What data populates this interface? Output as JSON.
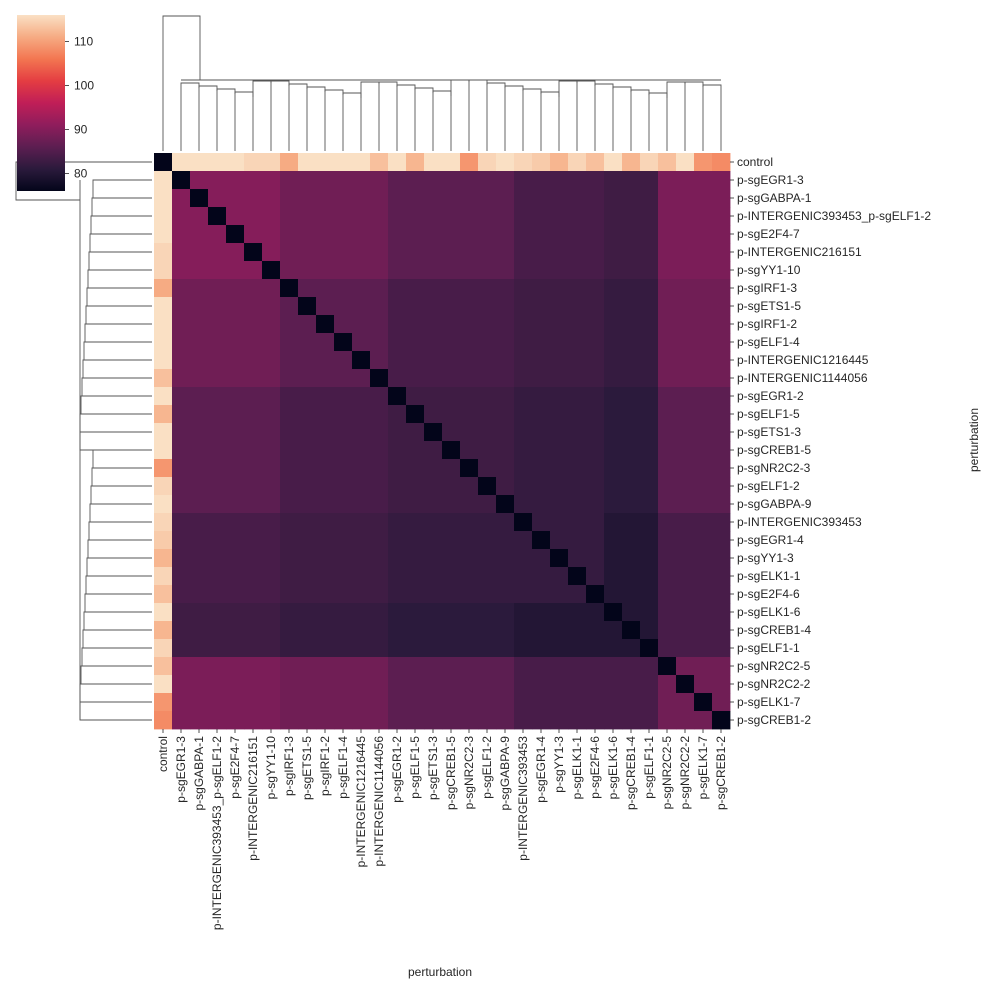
{
  "chart_data": {
    "type": "heatmap",
    "title": "",
    "xlabel": "perturbation",
    "ylabel": "perturbation",
    "labels": [
      "control",
      "p-sgEGR1-3",
      "p-sgGABPA-1",
      "p-INTERGENIC393453_p-sgELF1-2",
      "p-sgE2F4-7",
      "p-INTERGENIC216151",
      "p-sgYY1-10",
      "p-sgIRF1-3",
      "p-sgETS1-5",
      "p-sgIRF1-2",
      "p-sgELF1-4",
      "p-INTERGENIC1216445",
      "p-INTERGENIC1144056",
      "p-sgEGR1-2",
      "p-sgELF1-5",
      "p-sgETS1-3",
      "p-sgCREB1-5",
      "p-sgNR2C2-3",
      "p-sgELF1-2",
      "p-sgGABPA-9",
      "p-INTERGENIC393453",
      "p-sgEGR1-4",
      "p-sgYY1-3",
      "p-sgELK1-1",
      "p-sgE2F4-6",
      "p-sgELK1-6",
      "p-sgCREB1-4",
      "p-sgELF1-1",
      "p-sgNR2C2-5",
      "p-sgNR2C2-2",
      "p-sgELK1-7",
      "p-sgCREB1-2"
    ],
    "control_row": [
      76,
      116,
      116,
      116,
      116,
      115,
      115,
      111,
      116,
      116,
      116,
      116,
      113,
      116,
      112,
      116,
      116,
      109,
      115,
      116,
      115,
      114,
      112,
      115,
      113,
      116,
      112,
      115,
      113,
      116,
      109,
      108
    ],
    "block_values": {
      "A": 90,
      "B": 88,
      "C": 86,
      "D": 84,
      "E": 83,
      "F": 82,
      "G": 81,
      "H": 80,
      "K": 89
    },
    "block_layout": [
      {
        "rows": [
          1,
          6
        ],
        "cols": [
          1,
          6
        ],
        "block": "A"
      },
      {
        "rows": [
          1,
          6
        ],
        "cols": [
          7,
          12
        ],
        "block": "B"
      },
      {
        "rows": [
          1,
          6
        ],
        "cols": [
          13,
          19
        ],
        "block": "C"
      },
      {
        "rows": [
          1,
          6
        ],
        "cols": [
          20,
          24
        ],
        "block": "D"
      },
      {
        "rows": [
          1,
          6
        ],
        "cols": [
          25,
          27
        ],
        "block": "E"
      },
      {
        "rows": [
          1,
          6
        ],
        "cols": [
          28,
          31
        ],
        "block": "K"
      },
      {
        "rows": [
          7,
          12
        ],
        "cols": [
          7,
          12
        ],
        "block": "C"
      },
      {
        "rows": [
          7,
          12
        ],
        "cols": [
          13,
          19
        ],
        "block": "D"
      },
      {
        "rows": [
          7,
          12
        ],
        "cols": [
          20,
          24
        ],
        "block": "E"
      },
      {
        "rows": [
          7,
          12
        ],
        "cols": [
          25,
          27
        ],
        "block": "F"
      },
      {
        "rows": [
          7,
          12
        ],
        "cols": [
          28,
          31
        ],
        "block": "B"
      },
      {
        "rows": [
          13,
          19
        ],
        "cols": [
          13,
          19
        ],
        "block": "E"
      },
      {
        "rows": [
          13,
          19
        ],
        "cols": [
          20,
          24
        ],
        "block": "F"
      },
      {
        "rows": [
          13,
          19
        ],
        "cols": [
          25,
          27
        ],
        "block": "G"
      },
      {
        "rows": [
          13,
          19
        ],
        "cols": [
          28,
          31
        ],
        "block": "C"
      },
      {
        "rows": [
          20,
          24
        ],
        "cols": [
          20,
          24
        ],
        "block": "F"
      },
      {
        "rows": [
          20,
          24
        ],
        "cols": [
          25,
          27
        ],
        "block": "H"
      },
      {
        "rows": [
          20,
          24
        ],
        "cols": [
          28,
          31
        ],
        "block": "D"
      },
      {
        "rows": [
          25,
          27
        ],
        "cols": [
          25,
          27
        ],
        "block": "H"
      },
      {
        "rows": [
          25,
          27
        ],
        "cols": [
          28,
          31
        ],
        "block": "D"
      },
      {
        "rows": [
          28,
          31
        ],
        "cols": [
          28,
          31
        ],
        "block": "B"
      }
    ],
    "diagonal_value": 76,
    "colorbar": {
      "min": 76,
      "max": 116,
      "ticks": [
        80,
        90,
        100,
        110
      ],
      "colormap": "rocket",
      "color_stops": [
        "#03051a",
        "#2b1a3c",
        "#5c1e51",
        "#8f1d5c",
        "#c01e57",
        "#e43d42",
        "#f37651",
        "#f6ab83",
        "#fae0c4"
      ]
    },
    "row_dendrogram": true,
    "col_dendrogram": true
  }
}
